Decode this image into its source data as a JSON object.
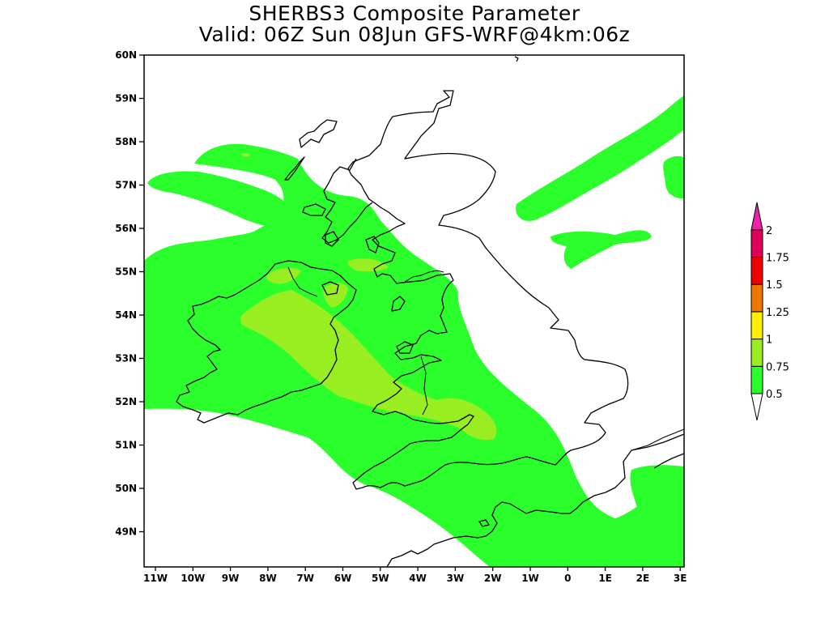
{
  "title": {
    "line1": "SHERBS3 Composite Parameter",
    "line2": "Valid: 06Z Sun 08Jun GFS-WRF@4km:06z"
  },
  "axes": {
    "lat_ticks": [
      "60N",
      "59N",
      "58N",
      "57N",
      "56N",
      "55N",
      "54N",
      "53N",
      "52N",
      "51N",
      "50N",
      "49N"
    ],
    "lon_ticks": [
      "11W",
      "10W",
      "9W",
      "8W",
      "7W",
      "6W",
      "5W",
      "4W",
      "3W",
      "2W",
      "1W",
      "0",
      "1E",
      "2E",
      "3E"
    ]
  },
  "colorbar": {
    "levels": [
      "0.5",
      "0.75",
      "1",
      "1.25",
      "1.5",
      "1.75",
      "2"
    ],
    "colors": [
      "#2bff2b",
      "#99ee22",
      "#ffee00",
      "#ee7700",
      "#ee0000",
      "#e0005a",
      "#ee22aa"
    ]
  },
  "field_colors": {
    "low": "#2bff2b",
    "mid": "#99ee22"
  }
}
